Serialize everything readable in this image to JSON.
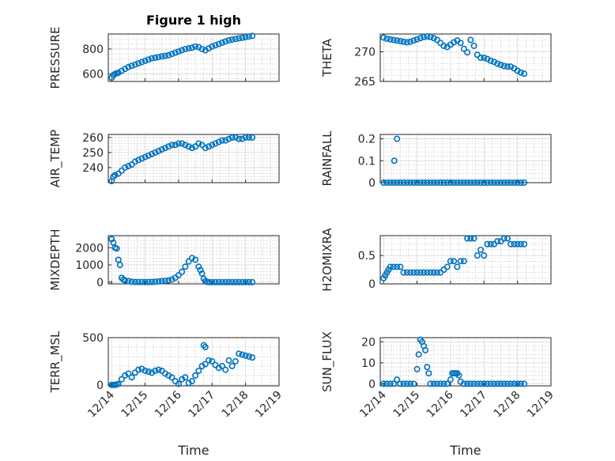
{
  "figure": {
    "title": "Figure 1 high",
    "xlabel": "Time",
    "marker_color": "#0072BD"
  },
  "chart_data": [
    {
      "type": "scatter",
      "ylabel": "PRESSURE",
      "ylim": [
        540,
        920
      ],
      "yticks": [
        600,
        800
      ],
      "ytick_labels": [
        "600",
        "800"
      ],
      "x": [
        14.0,
        14.05,
        14.1,
        14.15,
        14.2,
        14.3,
        14.4,
        14.5,
        14.6,
        14.7,
        14.8,
        14.9,
        15.0,
        15.1,
        15.2,
        15.3,
        15.4,
        15.5,
        15.6,
        15.7,
        15.8,
        15.9,
        16.0,
        16.1,
        16.2,
        16.3,
        16.4,
        16.5,
        16.6,
        16.7,
        16.8,
        16.9,
        17.0,
        17.1,
        17.2,
        17.3,
        17.4,
        17.5,
        17.6,
        17.7,
        17.8,
        17.9,
        18.0,
        18.1,
        18.2
      ],
      "y": [
        570,
        590,
        600,
        605,
        610,
        625,
        640,
        655,
        665,
        675,
        685,
        695,
        705,
        715,
        725,
        730,
        735,
        740,
        745,
        750,
        760,
        770,
        780,
        790,
        800,
        805,
        810,
        820,
        815,
        800,
        790,
        805,
        820,
        830,
        840,
        850,
        860,
        870,
        875,
        880,
        885,
        890,
        895,
        900,
        905
      ]
    },
    {
      "type": "scatter",
      "ylabel": "THETA",
      "ylim": [
        265,
        273
      ],
      "yticks": [
        265,
        270
      ],
      "ytick_labels": [
        "265",
        "270"
      ],
      "x": [
        14.0,
        14.1,
        14.2,
        14.3,
        14.4,
        14.5,
        14.6,
        14.7,
        14.8,
        14.9,
        15.0,
        15.1,
        15.2,
        15.3,
        15.4,
        15.5,
        15.6,
        15.7,
        15.8,
        15.9,
        16.0,
        16.1,
        16.2,
        16.3,
        16.4,
        16.5,
        16.6,
        16.7,
        16.8,
        16.9,
        17.0,
        17.1,
        17.2,
        17.3,
        17.4,
        17.5,
        17.6,
        17.7,
        17.8,
        17.9,
        18.0,
        18.1,
        18.2
      ],
      "y": [
        272.4,
        272.2,
        272.1,
        272.0,
        271.9,
        271.8,
        271.7,
        271.6,
        271.7,
        271.9,
        272.1,
        272.3,
        272.5,
        272.6,
        272.5,
        272.3,
        272.0,
        271.5,
        271.0,
        270.8,
        271.2,
        271.6,
        271.9,
        271.5,
        270.5,
        269.9,
        272.0,
        271.0,
        269.5,
        269.0,
        269.0,
        268.8,
        268.5,
        268.3,
        268.0,
        267.8,
        267.6,
        267.5,
        267.5,
        267.2,
        266.8,
        266.5,
        266.3
      ]
    },
    {
      "type": "scatter",
      "ylabel": "AIR_TEMP",
      "ylim": [
        230,
        262
      ],
      "yticks": [
        240,
        250,
        260
      ],
      "ytick_labels": [
        "240",
        "250",
        "260"
      ],
      "x": [
        14.0,
        14.05,
        14.1,
        14.2,
        14.3,
        14.4,
        14.5,
        14.6,
        14.7,
        14.8,
        14.9,
        15.0,
        15.1,
        15.2,
        15.3,
        15.4,
        15.5,
        15.6,
        15.7,
        15.8,
        15.9,
        16.0,
        16.1,
        16.2,
        16.3,
        16.4,
        16.5,
        16.6,
        16.7,
        16.8,
        16.9,
        17.0,
        17.1,
        17.2,
        17.3,
        17.4,
        17.5,
        17.6,
        17.7,
        17.8,
        17.9,
        18.0,
        18.1,
        18.2
      ],
      "y": [
        231,
        234,
        235,
        236,
        238,
        240,
        241,
        242,
        244,
        245,
        246,
        247,
        248,
        249,
        250,
        251,
        252,
        253,
        254,
        255,
        255,
        256,
        256,
        255,
        254,
        253,
        254,
        256,
        255,
        253,
        254,
        255,
        256,
        257,
        258,
        258,
        259,
        260,
        260,
        259,
        259,
        260,
        260,
        260
      ]
    },
    {
      "type": "scatter",
      "ylabel": "RAINFALL",
      "ylim": [
        0,
        0.22
      ],
      "yticks": [
        0,
        0.1,
        0.2
      ],
      "ytick_labels": [
        "0",
        "0.1",
        "0.2"
      ],
      "x": [
        14.0,
        14.1,
        14.2,
        14.3,
        14.4,
        14.5,
        14.6,
        14.7,
        14.8,
        14.9,
        15.0,
        15.1,
        15.2,
        15.3,
        15.4,
        15.5,
        15.6,
        15.7,
        15.8,
        15.9,
        16.0,
        16.1,
        16.2,
        16.3,
        16.4,
        16.5,
        16.6,
        16.7,
        16.8,
        16.9,
        17.0,
        17.1,
        17.2,
        17.3,
        17.4,
        17.5,
        17.6,
        17.7,
        17.8,
        17.9,
        18.0,
        18.1,
        18.2,
        14.32,
        14.4
      ],
      "y": [
        0,
        0,
        0,
        0,
        0,
        0,
        0,
        0,
        0,
        0,
        0,
        0,
        0,
        0,
        0,
        0,
        0,
        0,
        0,
        0,
        0,
        0,
        0,
        0,
        0,
        0,
        0,
        0,
        0,
        0,
        0,
        0,
        0,
        0,
        0,
        0,
        0,
        0,
        0,
        0,
        0,
        0,
        0,
        0.1,
        0.2
      ]
    },
    {
      "type": "scatter",
      "ylabel": "MIXDEPTH",
      "ylim": [
        -100,
        2700
      ],
      "yticks": [
        0,
        1000,
        2000
      ],
      "ytick_labels": [
        "0",
        "1000",
        "2000"
      ],
      "x": [
        14.0,
        14.05,
        14.1,
        14.15,
        14.2,
        14.25,
        14.3,
        14.35,
        14.4,
        14.5,
        14.6,
        14.7,
        14.8,
        14.9,
        15.0,
        15.1,
        15.2,
        15.3,
        15.4,
        15.5,
        15.6,
        15.7,
        15.8,
        15.9,
        16.0,
        16.1,
        16.2,
        16.3,
        16.4,
        16.5,
        16.6,
        16.65,
        16.7,
        16.75,
        16.8,
        16.85,
        16.9,
        17.0,
        17.1,
        17.2,
        17.3,
        17.4,
        17.5,
        17.6,
        17.7,
        17.8,
        17.9,
        18.0,
        18.1,
        18.2
      ],
      "y": [
        2500,
        2300,
        2000,
        1950,
        1300,
        1000,
        250,
        150,
        100,
        60,
        20,
        10,
        5,
        5,
        5,
        5,
        10,
        20,
        40,
        60,
        80,
        100,
        150,
        250,
        400,
        600,
        900,
        1200,
        1400,
        1300,
        900,
        700,
        500,
        200,
        60,
        10,
        5,
        0,
        0,
        0,
        0,
        0,
        0,
        0,
        0,
        0,
        0,
        0,
        0,
        0
      ]
    },
    {
      "type": "scatter",
      "ylabel": "H2OMIXRA",
      "ylim": [
        0,
        0.85
      ],
      "yticks": [
        0,
        0.5
      ],
      "ytick_labels": [
        "0",
        "0.5"
      ],
      "x": [
        14.0,
        14.05,
        14.1,
        14.15,
        14.2,
        14.3,
        14.4,
        14.5,
        14.6,
        14.7,
        14.8,
        14.9,
        15.0,
        15.1,
        15.2,
        15.3,
        15.4,
        15.5,
        15.6,
        15.7,
        15.8,
        15.9,
        16.0,
        16.1,
        16.2,
        16.3,
        16.4,
        16.5,
        16.6,
        16.7,
        16.8,
        16.9,
        17.0,
        17.1,
        17.2,
        17.3,
        17.4,
        17.5,
        17.6,
        17.7,
        17.8,
        17.9,
        18.0,
        18.1,
        18.2
      ],
      "y": [
        0.1,
        0.15,
        0.2,
        0.25,
        0.3,
        0.3,
        0.3,
        0.3,
        0.2,
        0.2,
        0.2,
        0.2,
        0.2,
        0.2,
        0.2,
        0.2,
        0.2,
        0.2,
        0.2,
        0.2,
        0.25,
        0.3,
        0.4,
        0.4,
        0.3,
        0.4,
        0.4,
        0.8,
        0.8,
        0.8,
        0.5,
        0.6,
        0.5,
        0.7,
        0.7,
        0.7,
        0.75,
        0.75,
        0.8,
        0.8,
        0.7,
        0.7,
        0.7,
        0.7,
        0.7
      ]
    },
    {
      "type": "scatter",
      "ylabel": "TERR_MSL",
      "ylim": [
        -10,
        500
      ],
      "yticks": [
        0,
        500
      ],
      "ytick_labels": [
        "0",
        "500"
      ],
      "x": [
        14.0,
        14.05,
        14.1,
        14.15,
        14.2,
        14.3,
        14.4,
        14.5,
        14.6,
        14.7,
        14.8,
        14.9,
        15.0,
        15.1,
        15.2,
        15.3,
        15.4,
        15.5,
        15.6,
        15.7,
        15.8,
        15.9,
        16.0,
        16.1,
        16.2,
        16.3,
        16.4,
        16.5,
        16.6,
        16.7,
        16.8,
        16.9,
        17.0,
        17.1,
        17.2,
        17.3,
        17.4,
        17.5,
        17.6,
        17.7,
        17.8,
        17.9,
        18.0,
        18.1,
        18.2,
        16.75,
        16.8
      ],
      "y": [
        0,
        0,
        0,
        5,
        10,
        60,
        100,
        120,
        80,
        130,
        160,
        170,
        150,
        140,
        130,
        150,
        160,
        150,
        120,
        100,
        80,
        40,
        10,
        60,
        80,
        20,
        40,
        100,
        150,
        200,
        220,
        260,
        250,
        210,
        180,
        200,
        160,
        260,
        200,
        250,
        330,
        320,
        310,
        300,
        290,
        420,
        400
      ]
    },
    {
      "type": "scatter",
      "ylabel": "SUN_FLUX",
      "ylim": [
        -1,
        22
      ],
      "yticks": [
        0,
        10,
        20
      ],
      "ytick_labels": [
        "0",
        "10",
        "20"
      ],
      "x": [
        14.0,
        14.1,
        14.2,
        14.3,
        14.4,
        14.5,
        14.6,
        14.7,
        14.8,
        14.9,
        15.0,
        15.05,
        15.1,
        15.15,
        15.2,
        15.25,
        15.3,
        15.35,
        15.4,
        15.5,
        15.6,
        15.7,
        15.8,
        15.9,
        16.0,
        16.05,
        16.1,
        16.15,
        16.2,
        16.25,
        16.3,
        16.4,
        16.5,
        16.6,
        16.7,
        16.8,
        16.9,
        17.0,
        17.1,
        17.2,
        17.3,
        17.4,
        17.5,
        17.6,
        17.7,
        17.8,
        17.9,
        18.0,
        18.1,
        18.2
      ],
      "y": [
        0,
        0,
        0,
        0,
        2,
        0,
        0,
        0,
        0,
        0,
        7,
        14,
        21,
        20,
        18,
        16,
        8,
        5,
        0,
        0,
        0,
        0,
        0,
        0,
        2,
        5,
        5,
        5,
        5,
        4,
        1,
        0,
        0,
        0,
        0,
        0,
        0,
        0,
        0,
        0,
        0,
        0,
        0,
        0,
        0,
        0,
        0,
        0,
        0,
        0
      ]
    }
  ],
  "xaxis": {
    "xlim": [
      13.9,
      19.0
    ],
    "ticks": [
      14,
      15,
      16,
      17,
      18,
      19
    ],
    "tick_labels": [
      "12/14",
      "12/15",
      "12/16",
      "12/17",
      "12/18",
      "12/19"
    ]
  }
}
